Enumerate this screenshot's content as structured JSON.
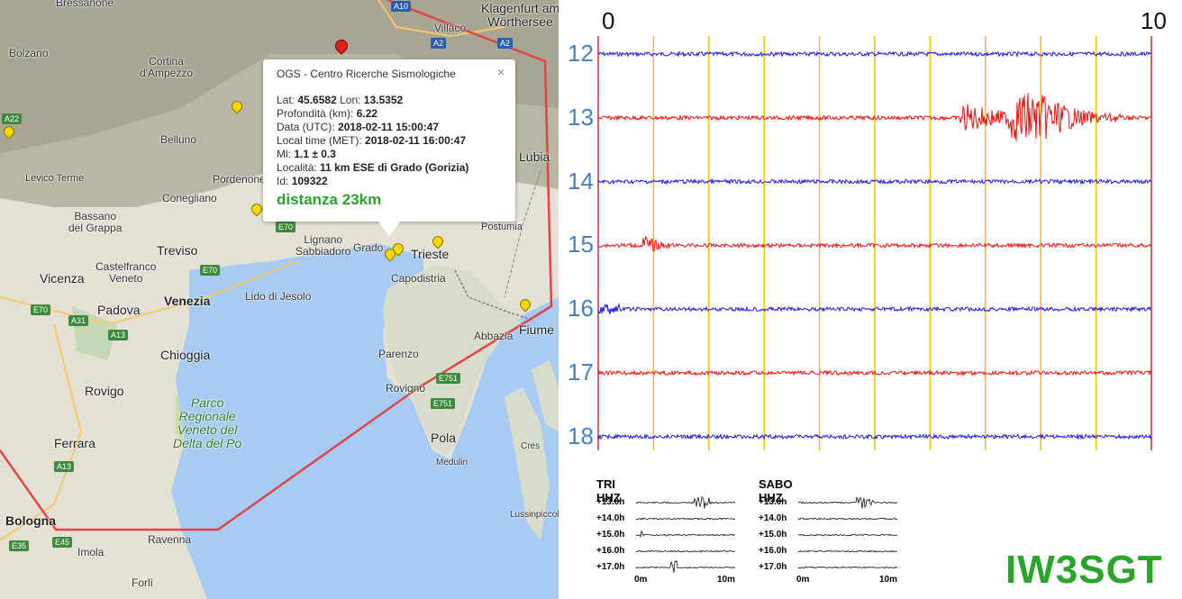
{
  "map": {
    "towns": {
      "bressanone": "Bressanone",
      "bolzano": "Bolzano",
      "cortina": "Cortina\nd'Ampezzo",
      "villaco": "Villaco",
      "klagenfurt": "Klagenfurt am\nWörthersee",
      "belluno": "Belluno",
      "levico": "Levico Terme",
      "pordenone": "Pordenone",
      "conegliano": "Conegliano",
      "bassano": "Bassano\ndel Grappa",
      "treviso": "Treviso",
      "castelfranco": "Castelfranco\nVeneto",
      "vicenza": "Vicenza",
      "padova": "Padova",
      "venezia": "Venezia",
      "lido": "Lido di Jesolo",
      "lignano": "Lignano\nSabbiadoro",
      "grado": "Grado",
      "trieste": "Trieste",
      "capodistria": "Capodistria",
      "postumia": "Postumia",
      "lubiana": "Lubia",
      "chioggia": "Chioggia",
      "rovigo": "Rovigo",
      "parco": "Parco\nRegionale\nVeneto del\nDelta del Po",
      "ferrara": "Ferrara",
      "bologna": "Bologna",
      "ravenna": "Ravenna",
      "imola": "Imola",
      "forli": "Forlì",
      "parenzo": "Parenzo",
      "rovigno": "Rovigno",
      "pola": "Pola",
      "medulin": "Medulin",
      "abbazia": "Abbazia",
      "fiume": "Fiume",
      "cres": "Cres",
      "lussinpiccolo": "Lussinpiccolo"
    },
    "shields": {
      "a10": "A10",
      "a2a": "A2",
      "a2b": "A2",
      "a22": "A22",
      "e70a": "E70",
      "e70b": "E70",
      "e70c": "E70",
      "a31": "A31",
      "a13a": "A13",
      "a13b": "A13",
      "e751a": "E751",
      "e751b": "E751",
      "e35": "E35",
      "e45": "E45"
    }
  },
  "popup": {
    "title": "OGS - Centro Ricerche Sismologiche",
    "close": "×",
    "lat_label": "Lat:",
    "lat": "45.6582",
    "lon_label": "Lon:",
    "lon": "13.5352",
    "depth_label": "Profondità (km):",
    "depth": "6.22",
    "utc_label": "Data (UTC):",
    "utc": "2018-02-11 15:00:47",
    "met_label": "Local time (MET):",
    "met": "2018-02-11 16:00:47",
    "ml_label": "Ml:",
    "ml": "1.1 ± 0.3",
    "loc_label": "Località:",
    "loc": "11 km ESE di Grado (Gorizia)",
    "id_label": "Id:",
    "id": "109322",
    "distance": "distanza 23km"
  },
  "seismogram": {
    "x_start": "0",
    "x_end": "10",
    "hours": [
      "12",
      "13",
      "14",
      "15",
      "16",
      "17",
      "18"
    ],
    "colors": {
      "blue": "#1a1adf",
      "red": "#ee1111",
      "grid": "#f2c200",
      "edge": "#c83030"
    }
  },
  "stations": [
    {
      "name": "TRI HHZ",
      "rows": [
        "+13.0h",
        "+14.0h",
        "+15.0h",
        "+16.0h",
        "+17.0h"
      ],
      "x0": "0m",
      "x1": "10m"
    },
    {
      "name": "SABO HHZ",
      "rows": [
        "+13.0h",
        "+14.0h",
        "+15.0h",
        "+16.0h",
        "+17.0h"
      ],
      "x0": "0m",
      "x1": "10m"
    }
  ],
  "callsign": "IW3SGT"
}
